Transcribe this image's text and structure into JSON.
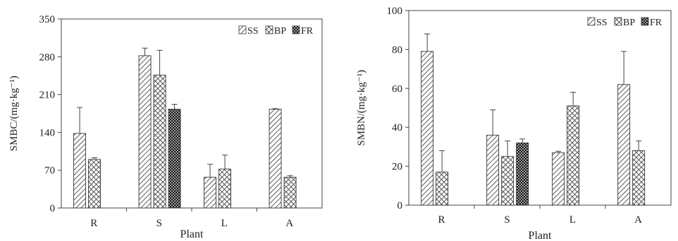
{
  "chart_data": [
    {
      "type": "bar",
      "categories": [
        "R",
        "S",
        "L",
        "A"
      ],
      "series": [
        {
          "name": "SS",
          "pattern": "diag",
          "values": [
            138,
            282,
            57,
            183
          ],
          "errors": [
            48,
            14,
            24,
            1
          ]
        },
        {
          "name": "BP",
          "pattern": "cross",
          "values": [
            90,
            246,
            72,
            57
          ],
          "errors": [
            3,
            46,
            26,
            3
          ]
        },
        {
          "name": "FR",
          "pattern": "dense",
          "values": [
            null,
            183,
            null,
            null
          ],
          "errors": [
            null,
            9,
            null,
            null
          ]
        }
      ],
      "title": "",
      "xlabel": "Plant",
      "ylabel": "SMBC/(mg·kg⁻¹)",
      "ylim": [
        0,
        350
      ],
      "yticks": [
        0,
        70,
        140,
        210,
        280,
        350
      ],
      "legend": "top-right",
      "grid": false
    },
    {
      "type": "bar",
      "categories": [
        "R",
        "S",
        "L",
        "A"
      ],
      "series": [
        {
          "name": "SS",
          "pattern": "diag",
          "values": [
            79,
            36,
            27,
            62
          ],
          "errors": [
            9,
            13,
            0.7,
            17
          ]
        },
        {
          "name": "BP",
          "pattern": "cross",
          "values": [
            17,
            25,
            51,
            28
          ],
          "errors": [
            11,
            8,
            7,
            5
          ]
        },
        {
          "name": "FR",
          "pattern": "dense",
          "values": [
            null,
            32,
            null,
            null
          ],
          "errors": [
            null,
            2,
            null,
            null
          ]
        }
      ],
      "title": "",
      "xlabel": "Plant",
      "ylabel": "SMBN/(mg·kg⁻¹)",
      "ylim": [
        0,
        100
      ],
      "yticks": [
        0,
        20,
        40,
        60,
        80,
        100
      ],
      "legend": "top-right",
      "grid": false
    }
  ]
}
